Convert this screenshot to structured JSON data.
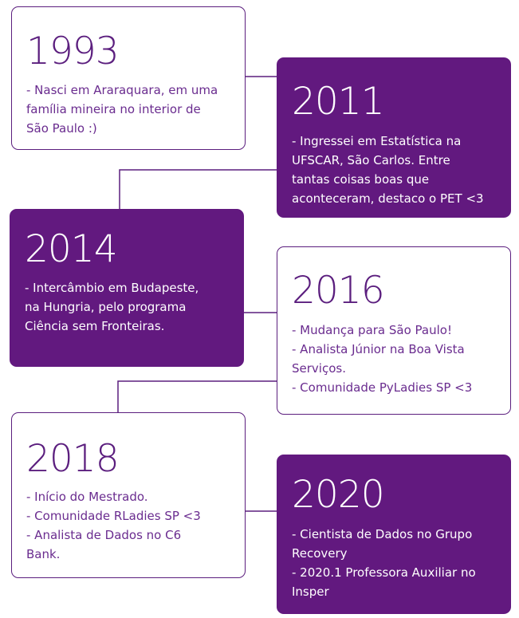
{
  "colors": {
    "accent": "#62197f",
    "border": "#5b1e7e",
    "text_light": "#6a2c8f",
    "background": "#ffffff"
  },
  "timeline": [
    {
      "year": "1993",
      "lines": [
        "- Nasci em Araraquara, em uma",
        "família mineira no interior de",
        "São Paulo :)"
      ]
    },
    {
      "year": "2011",
      "lines": [
        "- Ingressei em Estatística na",
        "UFSCAR, São Carlos. Entre",
        "tantas coisas boas que",
        "aconteceram, destaco o PET <3"
      ]
    },
    {
      "year": "2014",
      "lines": [
        "- Intercâmbio em Budapeste,",
        "na Hungria, pelo programa",
        "Ciência sem Fronteiras."
      ]
    },
    {
      "year": "2016",
      "lines": [
        "- Mudança para São Paulo!",
        "- Analista Júnior na Boa Vista",
        "Serviços.",
        "- Comunidade PyLadies SP  <3"
      ]
    },
    {
      "year": "2018",
      "lines": [
        "- Início do Mestrado.",
        "- Comunidade RLadies SP <3",
        "- Analista de Dados no C6",
        "Bank."
      ]
    },
    {
      "year": "2020",
      "lines": [
        "- Cientista de Dados no Grupo",
        "Recovery",
        "- 2020.1 Professora Auxiliar no",
        "Insper"
      ]
    }
  ]
}
